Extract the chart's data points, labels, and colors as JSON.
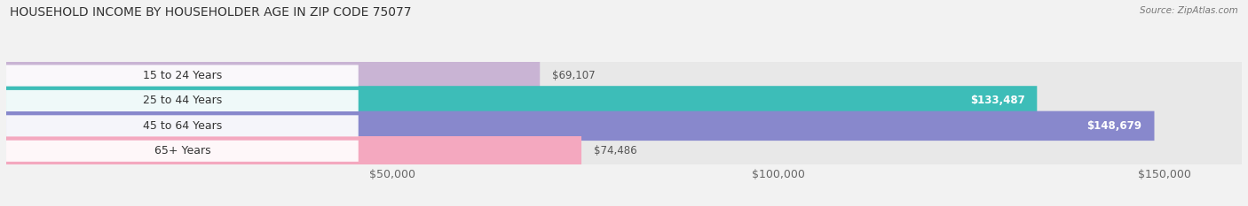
{
  "title": "HOUSEHOLD INCOME BY HOUSEHOLDER AGE IN ZIP CODE 75077",
  "source": "Source: ZipAtlas.com",
  "categories": [
    "15 to 24 Years",
    "25 to 44 Years",
    "45 to 64 Years",
    "65+ Years"
  ],
  "values": [
    69107,
    133487,
    148679,
    74486
  ],
  "bar_colors": [
    "#c9b4d4",
    "#3dbdb8",
    "#8888cc",
    "#f4a8bf"
  ],
  "bar_bg_color": "#e8e8e8",
  "value_labels": [
    "$69,107",
    "$133,487",
    "$148,679",
    "$74,486"
  ],
  "value_inside": [
    false,
    true,
    true,
    false
  ],
  "xlim_max": 160000,
  "xticks": [
    50000,
    100000,
    150000
  ],
  "xtick_labels": [
    "$50,000",
    "$100,000",
    "$150,000"
  ],
  "background_color": "#f2f2f2",
  "bar_height": 0.62,
  "title_fontsize": 10,
  "label_fontsize": 9,
  "value_fontsize": 8.5,
  "source_fontsize": 7.5
}
